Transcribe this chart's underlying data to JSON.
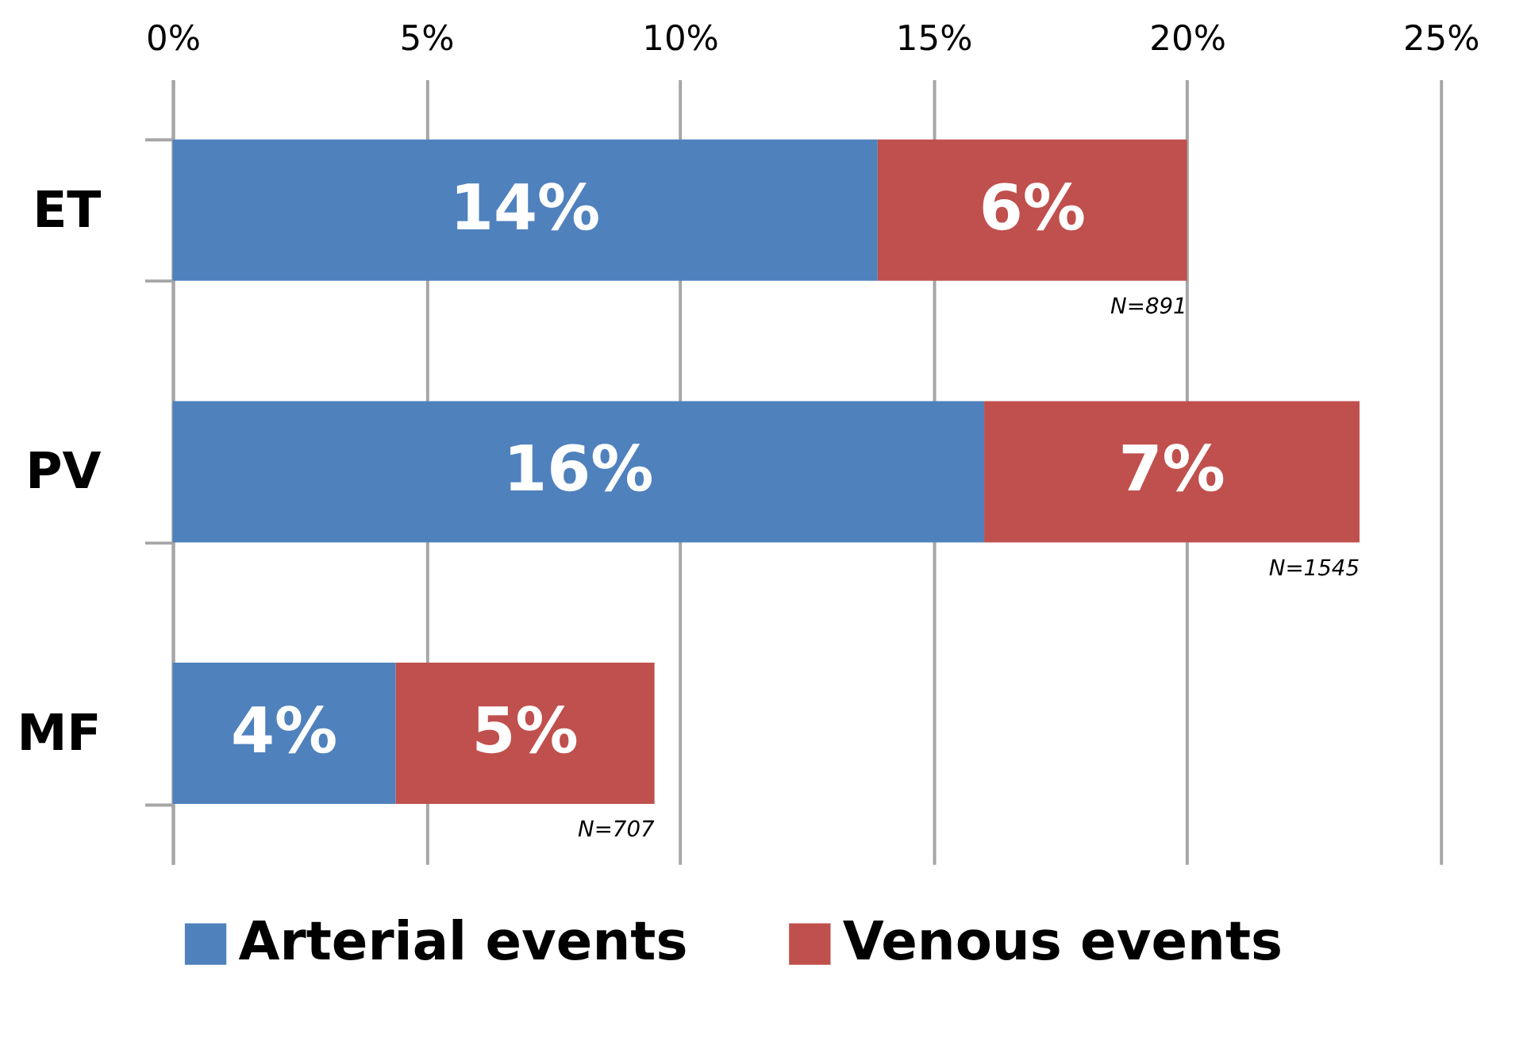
{
  "chart_data": {
    "type": "bar",
    "orientation": "horizontal",
    "stacked": true,
    "categories": [
      "ET",
      "PV",
      "MF"
    ],
    "series": [
      {
        "name": "Arterial events",
        "color": "#4f81bd",
        "values": [
          13.9,
          16.0,
          4.4
        ],
        "value_labels": [
          "14%",
          "16%",
          "4%"
        ]
      },
      {
        "name": "Venous events",
        "color": "#c0504d",
        "values": [
          6.1,
          7.4,
          5.1
        ],
        "value_labels": [
          "6%",
          "7%",
          "5%"
        ]
      }
    ],
    "xlim": [
      0,
      25
    ],
    "xticks": [
      {
        "value": 0,
        "label": "0%"
      },
      {
        "value": 5,
        "label": "5%"
      },
      {
        "value": 10,
        "label": "10%"
      },
      {
        "value": 15,
        "label": "15%"
      },
      {
        "value": 20,
        "label": "20%"
      },
      {
        "value": 25,
        "label": "25%"
      }
    ],
    "grid": "x",
    "legend": "bottom",
    "annotations": [
      "N=891",
      "N=1545",
      "N=707"
    ]
  }
}
